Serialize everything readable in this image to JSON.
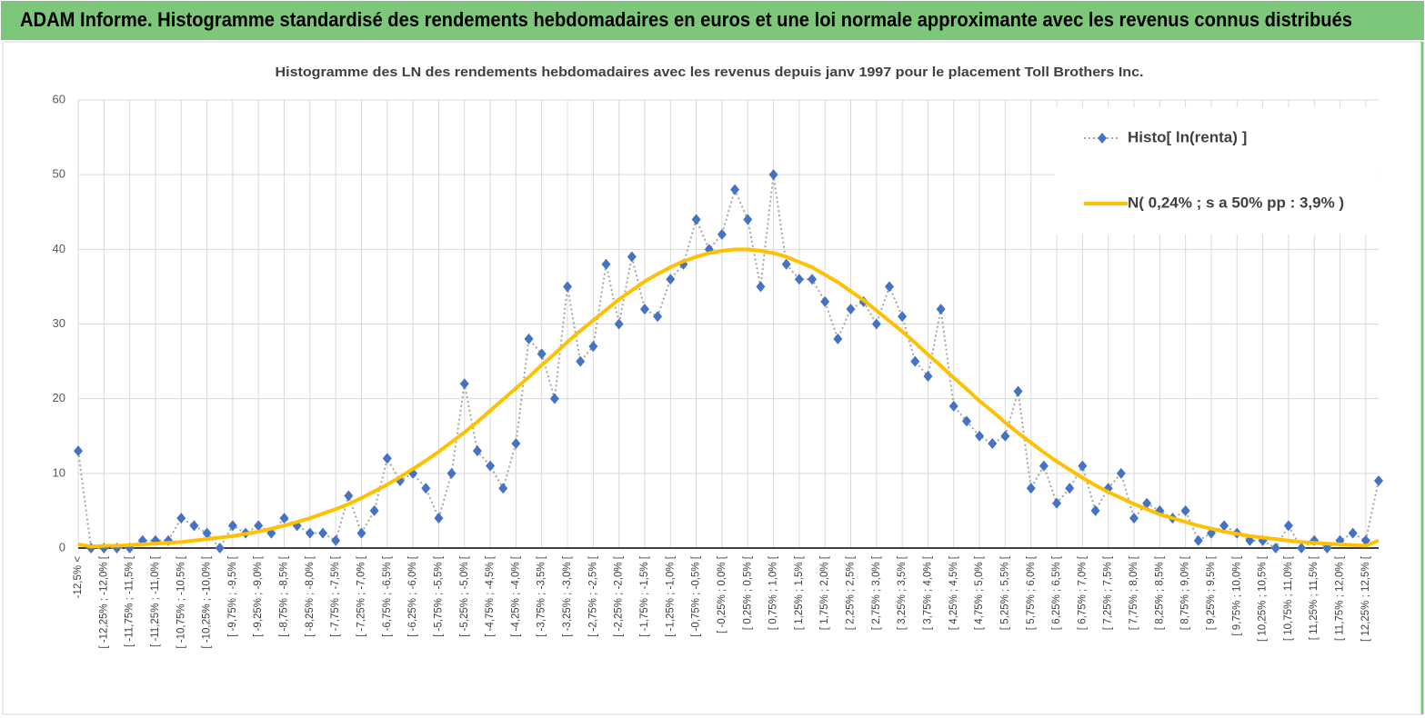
{
  "page_title": "ADAM Informe. Histogramme standardisé des rendements hebdomadaires en euros et une loi normale approximante avec les revenus connus distribués",
  "chart_data": {
    "type": "line",
    "title": "Histogramme  des LN des rendements hebdomadaires avec les revenus depuis janv 1997 pour le placement Toll Brothers Inc.",
    "categories": [
      "-12,5% <",
      null,
      "[ -12,25% ; -12,0% [",
      null,
      "[ -11,75% ; -11,5% [",
      null,
      "[ -11,25% ; -11,0% [",
      null,
      "[ -10,75% ; -10,5% [",
      null,
      "[ -10,25% ; -10,0% [",
      null,
      "[ -9,75% ; -9,5% [",
      null,
      "[ -9,25% ; -9,0% [",
      null,
      "[ -8,75% ; -8,5% [",
      null,
      "[ -8,25% ; -8,0% [",
      null,
      "[ -7,75% ; -7,5% [",
      null,
      "[ -7,25% ; -7,0% [",
      null,
      "[ -6,75% ; -6,5% [",
      null,
      "[ -6,25% ; -6,0% [",
      null,
      "[ -5,75% ; -5,5% [",
      null,
      "[ -5,25% ; -5,0% [",
      null,
      "[ -4,75% ; -4,5% [",
      null,
      "[ -4,25% ; -4,0% [",
      null,
      "[ -3,75% ; -3,5% [",
      null,
      "[ -3,25% ; -3,0% [",
      null,
      "[ -2,75% ; -2,5% [",
      null,
      "[ -2,25% ; -2,0% [",
      null,
      "[ -1,75% ; -1,5% [",
      null,
      "[ -1,25% ; -1,0% [",
      null,
      "[ -0,75% ; -0,5% [",
      null,
      "[ -0,25% ; 0,0% [",
      null,
      "[ 0,25% ; 0,5% [",
      null,
      "[ 0,75% ; 1,0% [",
      null,
      "[ 1,25% ; 1,5% [",
      null,
      "[ 1,75% ; 2,0% [",
      null,
      "[ 2,25% ; 2,5% [",
      null,
      "[ 2,75% ; 3,0% [",
      null,
      "[ 3,25% ; 3,5% [",
      null,
      "[ 3,75% ; 4,0% [",
      null,
      "[ 4,25% ; 4,5% [",
      null,
      "[ 4,75% ; 5,0% [",
      null,
      "[ 5,25% ; 5,5% [",
      null,
      "[ 5,75% ; 6,0% [",
      null,
      "[ 6,25% ; 6,5% [",
      null,
      "[ 6,75% ; 7,0% [",
      null,
      "[ 7,25% ; 7,5% [",
      null,
      "[ 7,75% ; 8,0% [",
      null,
      "[ 8,25% ; 8,5% [",
      null,
      "[ 8,75% ; 9,0% [",
      null,
      "[ 9,25% ; 9,5% [",
      null,
      "[ 9,75% ; 10,0% [",
      null,
      "[ 10,25% ; 10,5% [",
      null,
      "[ 10,75% ; 11,0% [",
      null,
      "[ 11,25% ; 11,5% [",
      null,
      "[ 11,75% ; 12,0% [",
      null,
      "[ 12,25% ; 12,5% [",
      null
    ],
    "series": [
      {
        "name": "Histo[ ln(renta) ]",
        "color": "#4472c4",
        "line_color": "#a6a6a6",
        "marker": "diamond",
        "values": [
          13,
          0,
          0,
          0,
          0,
          1,
          1,
          1,
          4,
          3,
          2,
          0,
          3,
          2,
          3,
          2,
          4,
          3,
          2,
          2,
          1,
          7,
          2,
          5,
          12,
          9,
          10,
          8,
          4,
          10,
          22,
          13,
          11,
          8,
          14,
          28,
          26,
          20,
          35,
          25,
          27,
          38,
          30,
          39,
          32,
          31,
          36,
          38,
          44,
          40,
          42,
          48,
          44,
          35,
          50,
          38,
          36,
          36,
          33,
          28,
          32,
          33,
          30,
          35,
          31,
          25,
          23,
          32,
          19,
          17,
          15,
          14,
          15,
          21,
          8,
          11,
          6,
          8,
          11,
          5,
          8,
          10,
          4,
          6,
          5,
          4,
          5,
          1,
          2,
          3,
          2,
          1,
          1,
          0,
          3,
          0,
          1,
          0,
          1,
          2,
          1,
          9
        ]
      },
      {
        "name": "N( 0,24% ; s a 50% pp : 3,9% )",
        "color": "#ffc000",
        "marker": "none",
        "values": [
          0.5,
          0.2,
          0.3,
          0.3,
          0.4,
          0.5,
          0.6,
          0.7,
          0.8,
          1.0,
          1.2,
          1.4,
          1.6,
          1.9,
          2.2,
          2.6,
          3.0,
          3.5,
          4.0,
          4.6,
          5.2,
          5.9,
          6.7,
          7.6,
          8.5,
          9.5,
          10.6,
          11.7,
          12.9,
          14.2,
          15.5,
          16.9,
          18.4,
          19.9,
          21.4,
          22.9,
          24.5,
          26.0,
          27.6,
          29.1,
          30.5,
          31.9,
          33.3,
          34.5,
          35.7,
          36.7,
          37.6,
          38.4,
          39.0,
          39.5,
          39.8,
          40.0,
          40.0,
          39.8,
          39.5,
          39.0,
          38.3,
          37.6,
          36.6,
          35.6,
          34.4,
          33.2,
          31.8,
          30.4,
          29.0,
          27.5,
          25.9,
          24.4,
          22.8,
          21.3,
          19.7,
          18.3,
          16.8,
          15.4,
          14.1,
          12.8,
          11.6,
          10.5,
          9.4,
          8.4,
          7.5,
          6.7,
          5.9,
          5.2,
          4.5,
          4.0,
          3.5,
          3.0,
          2.6,
          2.2,
          1.9,
          1.6,
          1.4,
          1.2,
          1.0,
          0.8,
          0.7,
          0.6,
          0.5,
          0.4,
          0.3,
          1.0
        ]
      }
    ],
    "ylim": [
      0,
      60
    ],
    "yticks": [
      0,
      10,
      20,
      30,
      40,
      50,
      60
    ],
    "grid": true,
    "legend": "top-right"
  }
}
